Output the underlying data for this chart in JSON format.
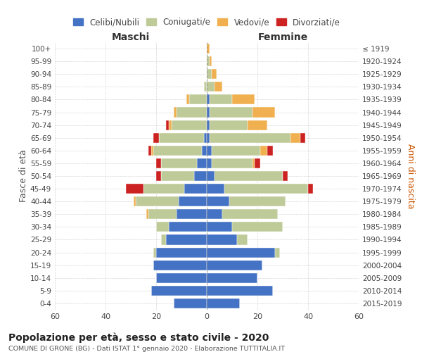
{
  "age_groups": [
    "0-4",
    "5-9",
    "10-14",
    "15-19",
    "20-24",
    "25-29",
    "30-34",
    "35-39",
    "40-44",
    "45-49",
    "50-54",
    "55-59",
    "60-64",
    "65-69",
    "70-74",
    "75-79",
    "80-84",
    "85-89",
    "90-94",
    "95-99",
    "100+"
  ],
  "birth_years": [
    "2015-2019",
    "2010-2014",
    "2005-2009",
    "2000-2004",
    "1995-1999",
    "1990-1994",
    "1985-1989",
    "1980-1984",
    "1975-1979",
    "1970-1974",
    "1965-1969",
    "1960-1964",
    "1955-1959",
    "1950-1954",
    "1945-1949",
    "1940-1944",
    "1935-1939",
    "1930-1934",
    "1925-1929",
    "1920-1924",
    "≤ 1919"
  ],
  "colors": {
    "celibi": "#4472C4",
    "coniugati": "#BFCA99",
    "vedovi": "#F0B050",
    "divorziati": "#CC2222"
  },
  "maschi": {
    "celibi": [
      13,
      22,
      20,
      21,
      20,
      16,
      15,
      12,
      11,
      9,
      5,
      4,
      2,
      1,
      0,
      0,
      0,
      0,
      0,
      0,
      0
    ],
    "coniugati": [
      0,
      0,
      0,
      0,
      1,
      2,
      5,
      11,
      17,
      16,
      13,
      14,
      19,
      18,
      14,
      12,
      7,
      1,
      0,
      0,
      0
    ],
    "vedovi": [
      0,
      0,
      0,
      0,
      0,
      0,
      0,
      1,
      1,
      0,
      0,
      0,
      1,
      0,
      1,
      1,
      1,
      0,
      0,
      0,
      0
    ],
    "divorziati": [
      0,
      0,
      0,
      0,
      0,
      0,
      0,
      0,
      0,
      7,
      2,
      2,
      1,
      2,
      1,
      0,
      0,
      0,
      0,
      0,
      0
    ]
  },
  "femmine": {
    "celibi": [
      13,
      26,
      20,
      22,
      27,
      12,
      10,
      6,
      9,
      7,
      3,
      2,
      2,
      1,
      1,
      1,
      1,
      0,
      0,
      0,
      0
    ],
    "coniugati": [
      0,
      0,
      0,
      0,
      2,
      4,
      20,
      22,
      22,
      33,
      27,
      16,
      19,
      32,
      15,
      17,
      9,
      3,
      2,
      1,
      0
    ],
    "vedovi": [
      0,
      0,
      0,
      0,
      0,
      0,
      0,
      0,
      0,
      0,
      0,
      1,
      3,
      4,
      8,
      9,
      9,
      3,
      2,
      1,
      1
    ],
    "divorziati": [
      0,
      0,
      0,
      0,
      0,
      0,
      0,
      0,
      0,
      2,
      2,
      2,
      2,
      2,
      0,
      0,
      0,
      0,
      0,
      0,
      0
    ]
  },
  "xlim": 60,
  "title": "Popolazione per età, sesso e stato civile - 2020",
  "subtitle": "COMUNE DI GRONE (BG) - Dati ISTAT 1° gennaio 2020 - Elaborazione TUTTITALIA.IT",
  "ylabel_left": "Fasce di età",
  "ylabel_right": "Anni di nascita",
  "xlabel_maschi": "Maschi",
  "xlabel_femmine": "Femmine",
  "legend_labels": [
    "Celibi/Nubili",
    "Coniugati/e",
    "Vedovi/e",
    "Divorziati/e"
  ],
  "background_color": "#FFFFFF",
  "grid_color": "#CCCCCC"
}
